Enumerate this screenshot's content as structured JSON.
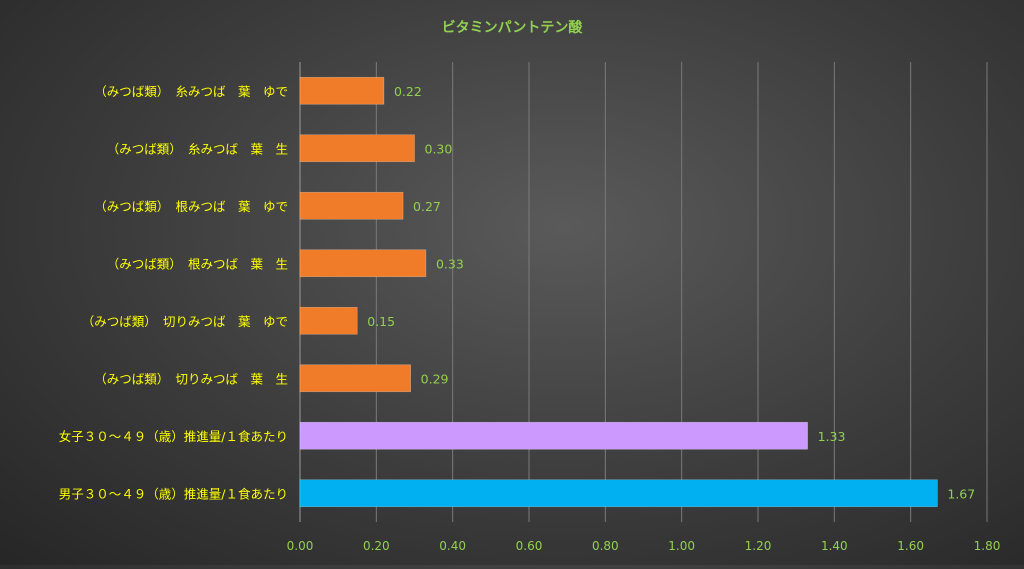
{
  "chart_data": {
    "type": "bar",
    "orientation": "horizontal",
    "title": "ビタミンパントテン酸",
    "categories": [
      "（みつば類）　糸みつば　葉　ゆで",
      "（みつば類）　糸みつば　葉　生",
      "（みつば類）　根みつば　葉　ゆで",
      "（みつば類）　根みつば　葉　生",
      "（みつば類）　切りみつば　葉　ゆで",
      "（みつば類）　切りみつば　葉　生",
      "女子３０～４９（歳）推進量/１食あたり",
      "男子３０～４９（歳）推進量/１食あたり"
    ],
    "values": [
      0.22,
      0.3,
      0.27,
      0.33,
      0.15,
      0.29,
      1.33,
      1.67
    ],
    "value_labels": [
      "0.22",
      "0.30",
      "0.27",
      "0.33",
      "0.15",
      "0.29",
      "1.33",
      "1.67"
    ],
    "bar_colors": [
      "#f07c2a",
      "#f07c2a",
      "#f07c2a",
      "#f07c2a",
      "#f07c2a",
      "#f07c2a",
      "#cc99ff",
      "#00b0f0"
    ],
    "xlim": [
      0,
      1.8
    ],
    "xticks": [
      "0.00",
      "0.20",
      "0.40",
      "0.60",
      "0.80",
      "1.00",
      "1.20",
      "1.40",
      "1.60",
      "1.80"
    ],
    "grid": "vertical",
    "legend": "none",
    "colors": {
      "title": "#92d050",
      "category_label": "#ffff00",
      "value_label": "#92d050",
      "tick_label": "#92d050",
      "gridline": "#7a7a7a"
    }
  }
}
